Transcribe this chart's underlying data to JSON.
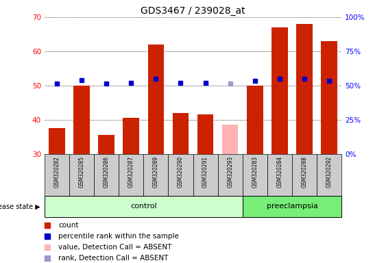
{
  "title": "GDS3467 / 239028_at",
  "samples": [
    "GSM320282",
    "GSM320285",
    "GSM320286",
    "GSM320287",
    "GSM320289",
    "GSM320290",
    "GSM320291",
    "GSM320293",
    "GSM320283",
    "GSM320284",
    "GSM320288",
    "GSM320292"
  ],
  "counts": [
    37.5,
    50,
    35.5,
    40.5,
    62,
    42,
    41.5,
    38.5,
    50,
    67,
    68,
    63
  ],
  "ranks": [
    51.5,
    54,
    51.5,
    52,
    55,
    52,
    52,
    51.5,
    53.5,
    55,
    55,
    53.5
  ],
  "absent_mask": [
    false,
    false,
    false,
    false,
    false,
    false,
    false,
    true,
    false,
    false,
    false,
    false
  ],
  "control_count": 8,
  "preeclampsia_count": 4,
  "ylim_left": [
    30,
    70
  ],
  "ylim_right": [
    0,
    100
  ],
  "yticks_left": [
    30,
    40,
    50,
    60,
    70
  ],
  "yticks_right": [
    0,
    25,
    50,
    75,
    100
  ],
  "ytick_labels_right": [
    "0%",
    "25%",
    "50%",
    "75%",
    "100%"
  ],
  "bar_color_normal": "#cc2200",
  "bar_color_absent": "#ffb3b3",
  "rank_color_normal": "#0000cc",
  "rank_color_absent": "#9999cc",
  "control_bg": "#ccffcc",
  "preeclampsia_bg": "#77ee77",
  "tick_label_bg": "#cccccc",
  "legend_items": [
    {
      "color": "#cc2200",
      "label": "count"
    },
    {
      "color": "#0000cc",
      "label": "percentile rank within the sample"
    },
    {
      "color": "#ffb3b3",
      "label": "value, Detection Call = ABSENT"
    },
    {
      "color": "#9999cc",
      "label": "rank, Detection Call = ABSENT"
    }
  ],
  "fig_width": 5.63,
  "fig_height": 3.84,
  "dpi": 100
}
